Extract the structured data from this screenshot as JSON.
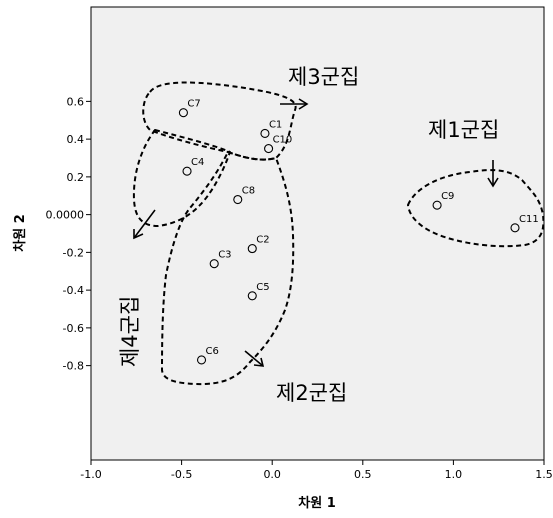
{
  "chart_data": {
    "type": "scatter",
    "xlabel": "차원 1",
    "ylabel": "차원 2",
    "xlim": [
      -1.0,
      1.5
    ],
    "ylim": [
      -1.3,
      1.1
    ],
    "x_ticks": [
      {
        "value": -1.0,
        "label": "-1.0"
      },
      {
        "value": -0.5,
        "label": "-0.5"
      },
      {
        "value": 0.0,
        "label": "0.0"
      },
      {
        "value": 0.5,
        "label": "0.5"
      },
      {
        "value": 1.0,
        "label": "1.0"
      },
      {
        "value": 1.5,
        "label": "1.5"
      }
    ],
    "y_ticks": [
      {
        "value": 0.6,
        "label": "0.6"
      },
      {
        "value": 0.4,
        "label": "0.4"
      },
      {
        "value": 0.2,
        "label": "0.2"
      },
      {
        "value": 0.0,
        "label": "0.0000"
      },
      {
        "value": -0.2,
        "label": "-0.2"
      },
      {
        "value": -0.4,
        "label": "-0.4"
      },
      {
        "value": -0.6,
        "label": "-0.6"
      },
      {
        "value": -0.8,
        "label": "-0.8"
      }
    ],
    "grid": false,
    "points": [
      {
        "label": "C1",
        "x": -0.04,
        "y": 0.43
      },
      {
        "label": "C2",
        "x": -0.11,
        "y": -0.18
      },
      {
        "label": "C3",
        "x": -0.32,
        "y": -0.26
      },
      {
        "label": "C4",
        "x": -0.47,
        "y": 0.23
      },
      {
        "label": "C5",
        "x": -0.11,
        "y": -0.43
      },
      {
        "label": "C6",
        "x": -0.39,
        "y": -0.77
      },
      {
        "label": "C7",
        "x": -0.49,
        "y": 0.54
      },
      {
        "label": "C8",
        "x": -0.19,
        "y": 0.08
      },
      {
        "label": "C9",
        "x": 0.91,
        "y": 0.05
      },
      {
        "label": "C10",
        "x": -0.02,
        "y": 0.35
      },
      {
        "label": "C11",
        "x": 1.34,
        "y": -0.07
      }
    ],
    "annotations": [
      {
        "name": "cluster-1",
        "text": "제1군집"
      },
      {
        "name": "cluster-2",
        "text": "제2군집"
      },
      {
        "name": "cluster-3",
        "text": "제3군집"
      },
      {
        "name": "cluster-4",
        "text": "제4군집"
      }
    ],
    "colors": {
      "plot_background": "#f0f0f0",
      "marker": "#000000"
    }
  }
}
